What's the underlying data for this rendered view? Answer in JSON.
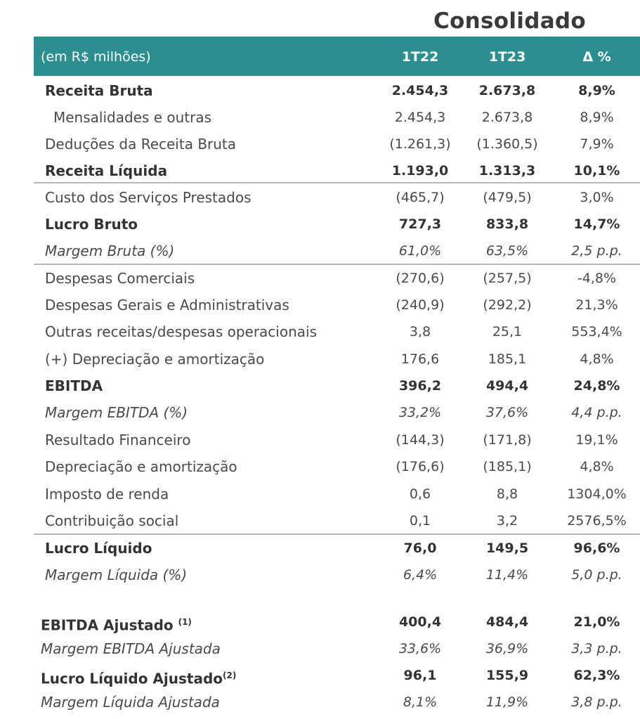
{
  "title": "Consolidado",
  "header": {
    "unit": "(em R$ milhões)",
    "col1": "1T22",
    "col2": "1T23",
    "col3": "Δ %"
  },
  "rows": [
    {
      "label": "Receita Bruta",
      "v1": "2.454,3",
      "v2": "2.673,8",
      "v3": "8,9%"
    },
    {
      "label": "Mensalidades e outras",
      "v1": "2.454,3",
      "v2": "2.673,8",
      "v3": "8,9%"
    },
    {
      "label": "Deduções da Receita Bruta",
      "v1": "(1.261,3)",
      "v2": "(1.360,5)",
      "v3": "7,9%"
    },
    {
      "label": "Receita Líquida",
      "v1": "1.193,0",
      "v2": "1.313,3",
      "v3": "10,1%"
    },
    {
      "label": "Custo dos Serviços Prestados",
      "v1": "(465,7)",
      "v2": "(479,5)",
      "v3": "3,0%"
    },
    {
      "label": "Lucro Bruto",
      "v1": "727,3",
      "v2": "833,8",
      "v3": "14,7%"
    },
    {
      "label": "Margem Bruta (%)",
      "v1": "61,0%",
      "v2": "63,5%",
      "v3": "2,5 p.p."
    },
    {
      "label": "Despesas Comerciais",
      "v1": "(270,6)",
      "v2": "(257,5)",
      "v3": "-4,8%"
    },
    {
      "label": "Despesas Gerais e Administrativas",
      "v1": "(240,9)",
      "v2": "(292,2)",
      "v3": "21,3%"
    },
    {
      "label": "Outras receitas/despesas operacionais",
      "v1": "3,8",
      "v2": "25,1",
      "v3": "553,4%"
    },
    {
      "label": "(+) Depreciação e amortização",
      "v1": "176,6",
      "v2": "185,1",
      "v3": "4,8%"
    },
    {
      "label": "EBITDA",
      "v1": "396,2",
      "v2": "494,4",
      "v3": "24,8%"
    },
    {
      "label": "Margem EBITDA (%)",
      "v1": "33,2%",
      "v2": "37,6%",
      "v3": "4,4 p.p."
    },
    {
      "label": "Resultado Financeiro",
      "v1": "(144,3)",
      "v2": "(171,8)",
      "v3": "19,1%"
    },
    {
      "label": "Depreciação e amortização",
      "v1": "(176,6)",
      "v2": "(185,1)",
      "v3": "4,8%"
    },
    {
      "label": "Imposto de renda",
      "v1": "0,6",
      "v2": "8,8",
      "v3": "1304,0%"
    },
    {
      "label": "Contribuição social",
      "v1": "0,1",
      "v2": "3,2",
      "v3": "2576,5%"
    },
    {
      "label": "Lucro Líquido",
      "v1": "76,0",
      "v2": "149,5",
      "v3": "96,6%"
    },
    {
      "label": "Margem Líquida (%)",
      "v1": "6,4%",
      "v2": "11,4%",
      "v3": "5,0 p.p."
    },
    {
      "label": "EBITDA Ajustado",
      "sup": "(1)",
      "v1": "400,4",
      "v2": "484,4",
      "v3": "21,0%"
    },
    {
      "label": "Margem EBITDA Ajustada",
      "v1": "33,6%",
      "v2": "36,9%",
      "v3": "3,3 p.p."
    },
    {
      "label": "Lucro Líquido Ajustado",
      "sup": "(2)",
      "v1": "96,1",
      "v2": "155,9",
      "v3": "62,3%"
    },
    {
      "label": "Margem Líquida Ajustada",
      "v1": "8,1%",
      "v2": "11,9%",
      "v3": "3,8 p.p."
    }
  ]
}
